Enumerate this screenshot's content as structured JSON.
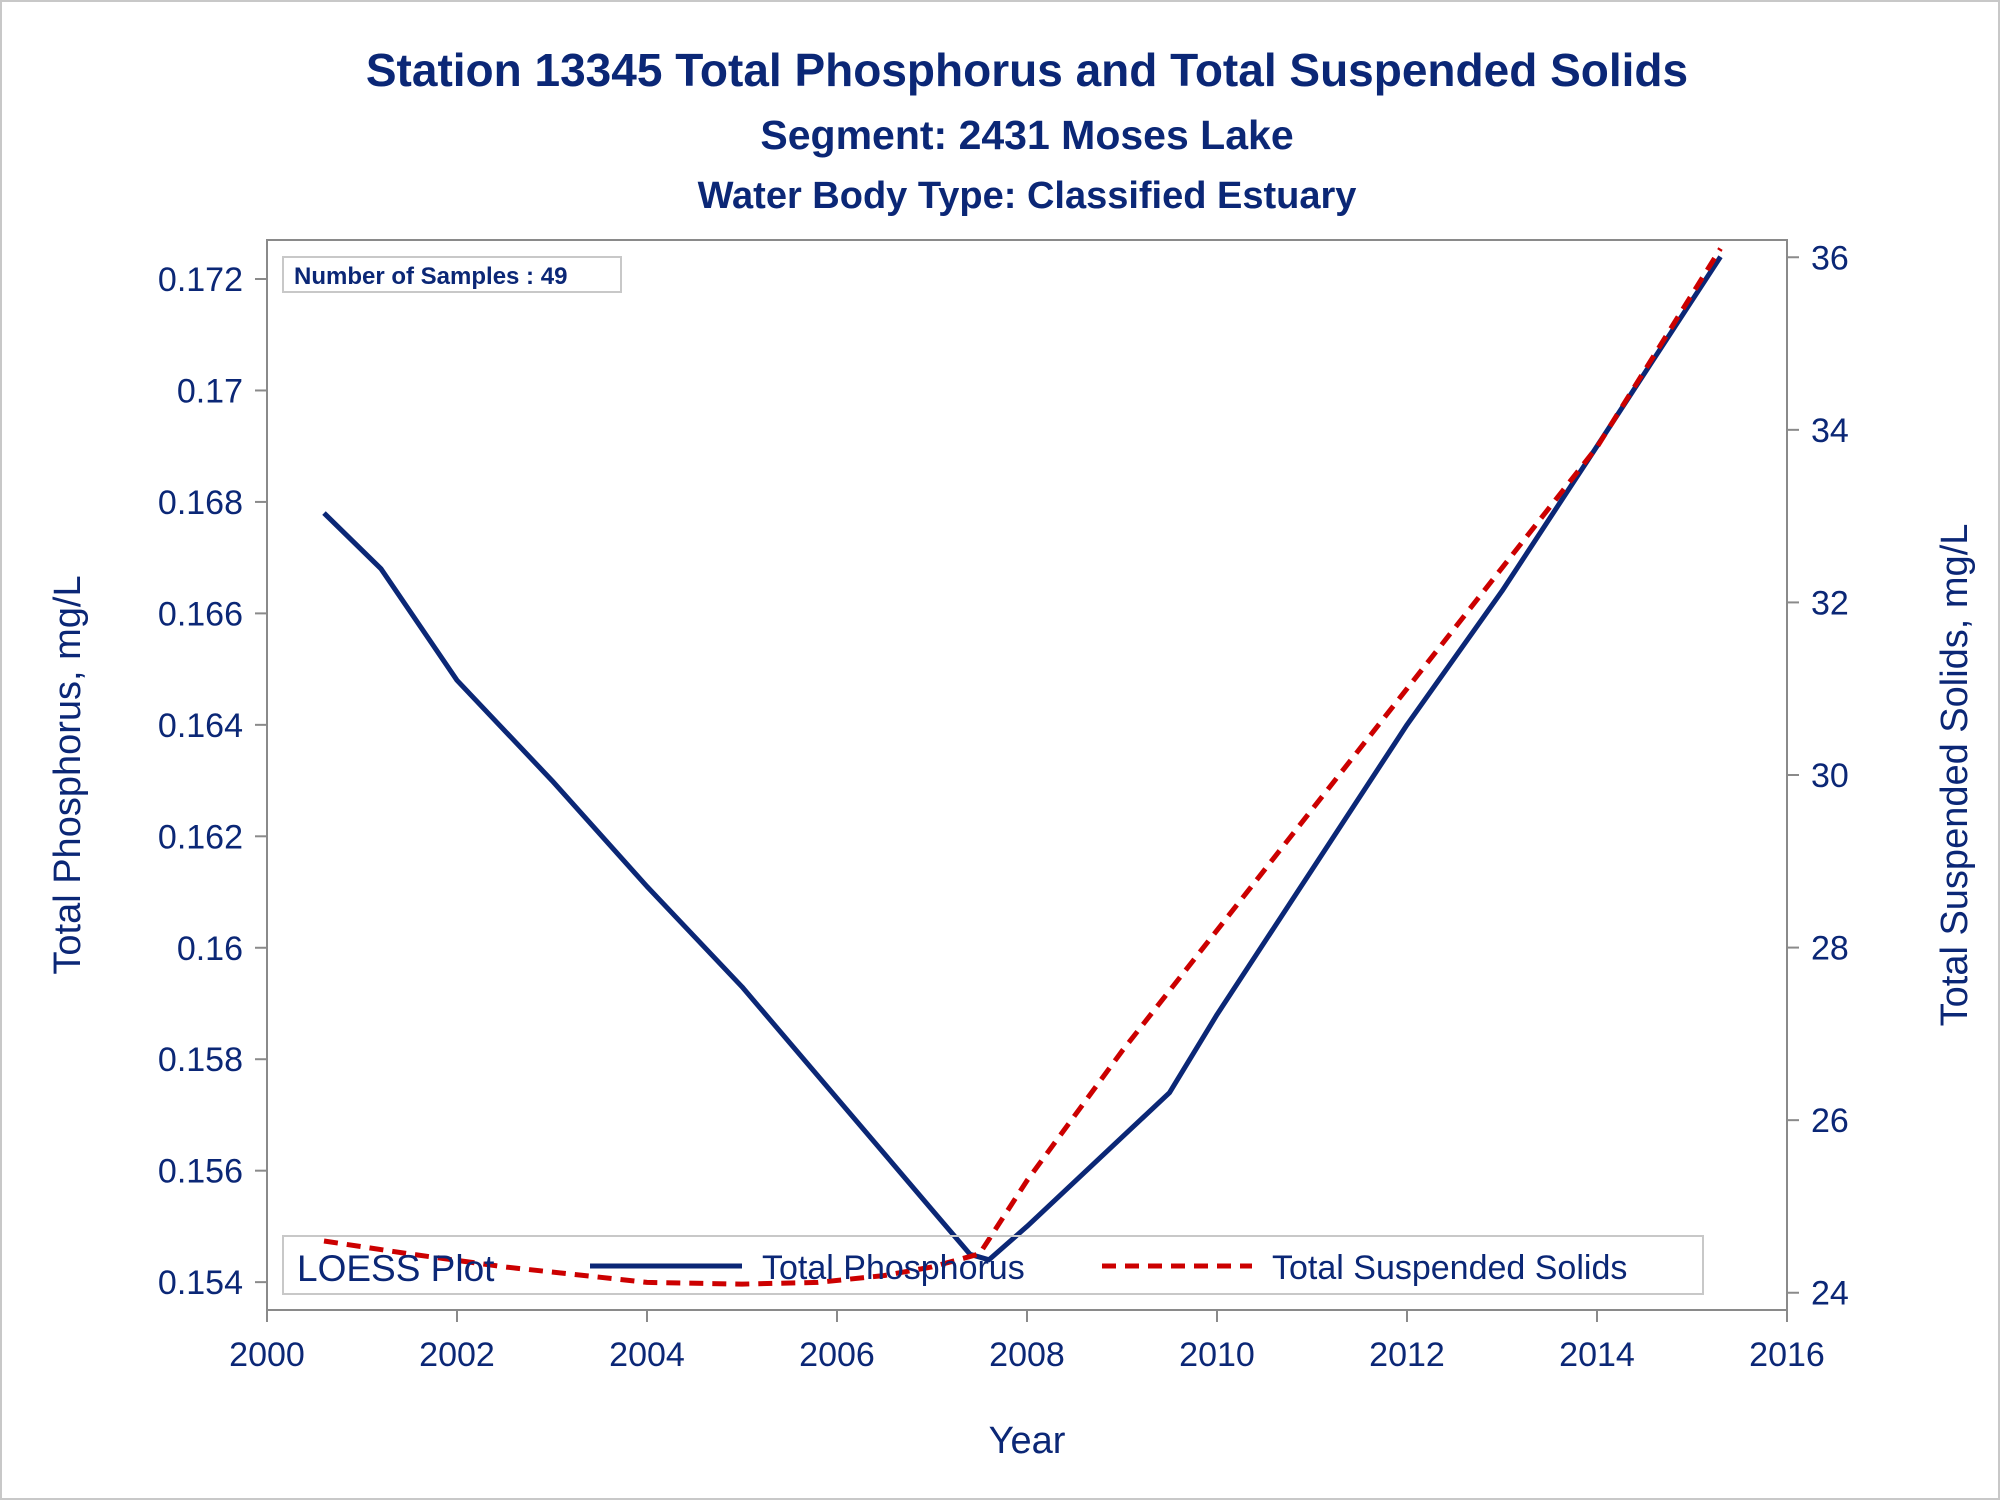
{
  "chart_data": {
    "type": "line",
    "title": "Station 13345  Total Phosphorus and Total Suspended Solids",
    "subtitle": "Segment: 2431  Moses Lake",
    "subtitle2": "Water Body Type: Classified Estuary",
    "xlabel": "Year",
    "ylabel_left": "Total Phosphorus, mg/L",
    "ylabel_right": "Total Suspended Solids, mg/L",
    "xlim": [
      2000,
      2016
    ],
    "ylim_left": [
      0.1535,
      0.1727
    ],
    "ylim_right": [
      23.8,
      36.2
    ],
    "x_ticks": [
      2000,
      2002,
      2004,
      2006,
      2008,
      2010,
      2012,
      2014,
      2016
    ],
    "x_tick_labels": [
      "2000",
      "2002",
      "2004",
      "2006",
      "2008",
      "2010",
      "2012",
      "2014",
      "2016"
    ],
    "y_left_ticks": [
      0.154,
      0.156,
      0.158,
      0.16,
      0.162,
      0.164,
      0.166,
      0.168,
      0.17,
      0.172
    ],
    "y_left_tick_labels": [
      "0.154",
      "0.156",
      "0.158",
      "0.16",
      "0.162",
      "0.164",
      "0.166",
      "0.168",
      "0.17",
      "0.172"
    ],
    "y_right_ticks": [
      24,
      26,
      28,
      30,
      32,
      34,
      36
    ],
    "y_right_tick_labels": [
      "24",
      "26",
      "28",
      "30",
      "32",
      "34",
      "36"
    ],
    "annotation": "Number of Samples : 49",
    "legend_title": "LOESS Plot",
    "legend_position": "bottom-inside",
    "grid": false,
    "series": [
      {
        "name": "Total Phosphorus",
        "axis": "left",
        "color": "#0b2776",
        "style": "solid",
        "x": [
          2000.6,
          2001.2,
          2002.0,
          2003.0,
          2004.0,
          2005.0,
          2006.0,
          2007.0,
          2007.4,
          2007.6,
          2008.0,
          2008.5,
          2009.0,
          2009.5,
          2010.0,
          2011.0,
          2012.0,
          2013.0,
          2014.0,
          2015.3
        ],
        "values": [
          0.1678,
          0.1668,
          0.1648,
          0.163,
          0.1611,
          0.1593,
          0.1573,
          0.1553,
          0.1545,
          0.1544,
          0.155,
          0.1558,
          0.1566,
          0.1574,
          0.1588,
          0.1614,
          0.164,
          0.1664,
          0.169,
          0.1724
        ]
      },
      {
        "name": "Total Suspended Solids",
        "axis": "right",
        "color": "#cc0000",
        "style": "dashed",
        "x": [
          2000.6,
          2001.5,
          2002.5,
          2003.5,
          2004.0,
          2005.0,
          2005.8,
          2006.5,
          2007.0,
          2007.5,
          2008.0,
          2009.0,
          2010.0,
          2011.0,
          2012.0,
          2013.0,
          2014.0,
          2015.3
        ],
        "values": [
          24.6,
          24.45,
          24.3,
          24.18,
          24.12,
          24.1,
          24.12,
          24.2,
          24.3,
          24.45,
          25.3,
          26.8,
          28.2,
          29.6,
          31.0,
          32.4,
          33.8,
          36.1
        ]
      }
    ]
  }
}
